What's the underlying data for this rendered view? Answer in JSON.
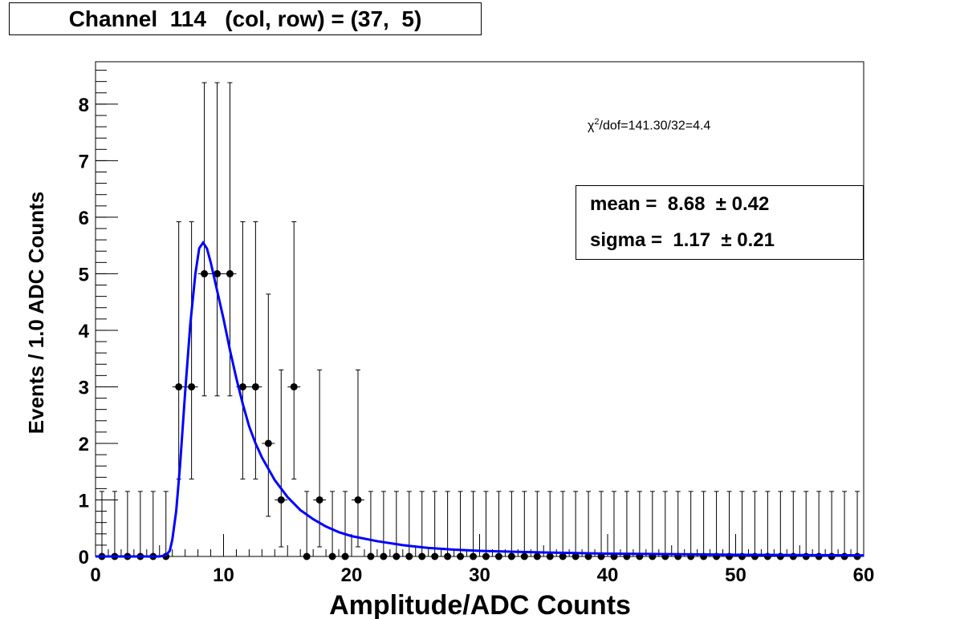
{
  "title": "Channel  114   (col, row) = (37,  5)",
  "fit": {
    "chi2_symbol": "χ",
    "chi2_sup": "2",
    "chi2_text": "/dof=141.30/32=4.4",
    "mean_text": "mean =  8.68  ± 0.42",
    "sigma_text": "sigma =  1.17  ± 0.21"
  },
  "colors": {
    "data": "#000000",
    "fit": "#0000ff",
    "frame": "#000000"
  },
  "chart_data": {
    "type": "scatter",
    "xlabel": "Amplitude/ADC Counts",
    "ylabel": "Events / 1.0 ADC Counts",
    "xlim": [
      0,
      60
    ],
    "ylim": [
      0,
      8.75
    ],
    "x_ticks": [
      0,
      10,
      20,
      30,
      40,
      50,
      60
    ],
    "y_ticks": [
      0,
      1,
      2,
      3,
      4,
      5,
      6,
      7,
      8
    ],
    "grid": false,
    "x": [
      0.5,
      1.5,
      2.5,
      3.5,
      4.5,
      5.5,
      6.5,
      7.5,
      8.5,
      9.5,
      10.5,
      11.5,
      12.5,
      13.5,
      14.5,
      15.5,
      16.5,
      17.5,
      18.5,
      19.5,
      20.5,
      21.5,
      22.5,
      23.5,
      24.5,
      25.5,
      26.5,
      27.5,
      28.5,
      29.5,
      30.5,
      31.5,
      32.5,
      33.5,
      34.5,
      35.5,
      36.5,
      37.5,
      38.5,
      39.5,
      40.5,
      41.5,
      42.5,
      43.5,
      44.5,
      45.5,
      46.5,
      47.5,
      48.5,
      49.5,
      50.5,
      51.5,
      52.5,
      53.5,
      54.5,
      55.5,
      56.5,
      57.5,
      58.5,
      59.5
    ],
    "y": [
      0,
      0,
      0,
      0,
      0,
      0,
      3,
      3,
      5,
      5,
      5,
      3,
      3,
      2,
      1,
      3,
      0,
      1,
      0,
      0,
      1,
      0,
      0,
      0,
      0,
      0,
      0,
      0,
      0,
      0,
      0,
      0,
      0,
      0,
      0,
      0,
      0,
      0,
      0,
      0,
      0,
      0,
      0,
      0,
      0,
      0,
      0,
      0,
      0,
      0,
      0,
      0,
      0,
      0,
      0,
      0,
      0,
      0,
      0,
      0
    ],
    "y_err_low": [
      0,
      0,
      0,
      0,
      0,
      0,
      1.63,
      1.63,
      2.16,
      2.16,
      2.16,
      1.63,
      1.63,
      1.29,
      0.83,
      1.63,
      0,
      0.83,
      0,
      0,
      0.83,
      0,
      0,
      0,
      0,
      0,
      0,
      0,
      0,
      0,
      0,
      0,
      0,
      0,
      0,
      0,
      0,
      0,
      0,
      0,
      0,
      0,
      0,
      0,
      0,
      0,
      0,
      0,
      0,
      0,
      0,
      0,
      0,
      0,
      0,
      0,
      0,
      0,
      0,
      0
    ],
    "y_err_high": [
      1.15,
      1.15,
      1.15,
      1.15,
      1.15,
      1.15,
      2.92,
      2.92,
      3.38,
      3.38,
      3.38,
      2.92,
      2.92,
      2.64,
      2.3,
      2.92,
      1.15,
      2.3,
      1.15,
      1.15,
      2.3,
      1.15,
      1.15,
      1.15,
      1.15,
      1.15,
      1.15,
      1.15,
      1.15,
      1.15,
      1.15,
      1.15,
      1.15,
      1.15,
      1.15,
      1.15,
      1.15,
      1.15,
      1.15,
      1.15,
      1.15,
      1.15,
      1.15,
      1.15,
      1.15,
      1.15,
      1.15,
      1.15,
      1.15,
      1.15,
      1.15,
      1.15,
      1.15,
      1.15,
      1.15,
      1.15,
      1.15,
      1.15,
      1.15,
      1.15
    ],
    "fit_curve": {
      "x": [
        0,
        5,
        5.5,
        5.8,
        6,
        6.3,
        6.6,
        7,
        7.4,
        7.8,
        8.1,
        8.4,
        8.7,
        9,
        9.5,
        10,
        10.5,
        11,
        11.5,
        12,
        12.5,
        13,
        14,
        15,
        16,
        17,
        18,
        19,
        20,
        22,
        24,
        26,
        28,
        30,
        35,
        40,
        45,
        50,
        55,
        60
      ],
      "y": [
        0,
        0,
        0.02,
        0.1,
        0.3,
        0.8,
        1.6,
        2.9,
        4.1,
        5.0,
        5.45,
        5.55,
        5.45,
        5.2,
        4.7,
        4.2,
        3.65,
        3.15,
        2.7,
        2.3,
        2.0,
        1.75,
        1.35,
        1.05,
        0.82,
        0.66,
        0.53,
        0.43,
        0.36,
        0.27,
        0.2,
        0.15,
        0.12,
        0.1,
        0.07,
        0.05,
        0.04,
        0.03,
        0.025,
        0.02
      ]
    }
  }
}
